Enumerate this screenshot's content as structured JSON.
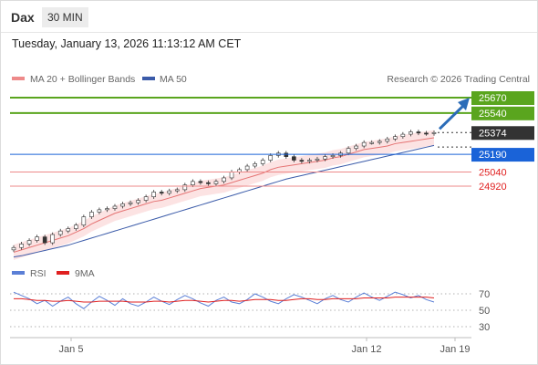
{
  "header": {
    "symbol": "Dax",
    "timeframe": "30 MIN"
  },
  "datetime": "Tuesday, January 13, 2026 11:13:12 AM CET",
  "legend": {
    "ma20": "MA 20 + Bollinger Bands",
    "ma50": "MA 50",
    "credit": "Research © 2026 Trading Central"
  },
  "colors": {
    "resistance": "#5aa51e",
    "support": "#ee8a8a",
    "current": "#333333",
    "pivot": "#1a63d8",
    "ma20": "#e57373",
    "ma50": "#3b5ba9",
    "band": "#fbd9d9",
    "rsi": "#5b7fd6",
    "rsi_ma": "#e02020"
  },
  "chart_data": [
    {
      "type": "candlestick",
      "title": "Dax",
      "timeframe": "30 MIN",
      "x_ticks": [
        "Jan 5",
        "Jan 12",
        "Jan 19"
      ],
      "ylim": [
        24300,
        25750
      ],
      "close_series": [
        24400,
        24430,
        24460,
        24490,
        24440,
        24510,
        24540,
        24560,
        24590,
        24660,
        24700,
        24720,
        24730,
        24750,
        24770,
        24780,
        24800,
        24830,
        24870,
        24860,
        24880,
        24890,
        24930,
        24960,
        24950,
        24940,
        24960,
        24990,
        25040,
        25060,
        25090,
        25110,
        25140,
        25180,
        25200,
        25170,
        25140,
        25130,
        25140,
        25150,
        25170,
        25180,
        25200,
        25240,
        25260,
        25290,
        25290,
        25300,
        25320,
        25340,
        25360,
        25380,
        25370,
        25365,
        25374
      ],
      "series": [
        {
          "name": "MA 20 + Bollinger Bands",
          "values": [
            24360,
            24380,
            24400,
            24420,
            24440,
            24460,
            24480,
            24500,
            24530,
            24560,
            24600,
            24630,
            24660,
            24690,
            24710,
            24730,
            24750,
            24770,
            24790,
            24800,
            24820,
            24840,
            24860,
            24880,
            24900,
            24910,
            24920,
            24930,
            24950,
            24970,
            24990,
            25010,
            25030,
            25060,
            25080,
            25090,
            25100,
            25110,
            25120,
            25130,
            25140,
            25160,
            25170,
            25190,
            25210,
            25230,
            25240,
            25250,
            25260,
            25280,
            25290,
            25300,
            25310,
            25320,
            25330
          ]
        },
        {
          "name": "MA 50",
          "values": [
            24320,
            24330,
            24345,
            24360,
            24375,
            24390,
            24405,
            24420,
            24440,
            24460,
            24480,
            24500,
            24520,
            24540,
            24560,
            24580,
            24600,
            24620,
            24640,
            24660,
            24680,
            24700,
            24720,
            24740,
            24760,
            24780,
            24800,
            24820,
            24840,
            24860,
            24880,
            24900,
            24920,
            24940,
            24960,
            24980,
            24995,
            25010,
            25025,
            25040,
            25055,
            25070,
            25085,
            25100,
            25115,
            25130,
            25145,
            25160,
            25175,
            25190,
            25205,
            25220,
            25235,
            25250,
            25265
          ]
        }
      ],
      "levels": [
        {
          "value": 25670,
          "label": "25670",
          "kind": "resistance"
        },
        {
          "value": 25540,
          "label": "25540",
          "kind": "resistance"
        },
        {
          "value": 25374,
          "label": "25374",
          "kind": "current"
        },
        {
          "value": 25190,
          "label": "25190",
          "kind": "pivot"
        },
        {
          "value": 25040,
          "label": "25040",
          "kind": "support"
        },
        {
          "value": 24920,
          "label": "24920",
          "kind": "support"
        }
      ],
      "annotation": {
        "direction": "up",
        "target": 25670
      }
    },
    {
      "type": "line",
      "series": [
        {
          "name": "RSI",
          "values": [
            72,
            68,
            64,
            58,
            62,
            55,
            61,
            66,
            58,
            52,
            60,
            67,
            62,
            56,
            64,
            58,
            55,
            60,
            66,
            61,
            57,
            63,
            68,
            64,
            59,
            55,
            62,
            66,
            60,
            58,
            63,
            70,
            66,
            61,
            58,
            64,
            69,
            66,
            62,
            58,
            64,
            68,
            63,
            60,
            66,
            71,
            66,
            62,
            67,
            72,
            69,
            65,
            68,
            63,
            60
          ]
        },
        {
          "name": "9MA",
          "values": [
            64,
            64,
            63,
            62,
            62,
            61,
            61,
            62,
            61,
            60,
            60,
            61,
            61,
            61,
            61,
            60,
            60,
            60,
            61,
            61,
            60,
            61,
            62,
            62,
            61,
            60,
            61,
            62,
            62,
            61,
            62,
            63,
            63,
            63,
            62,
            62,
            63,
            64,
            64,
            63,
            63,
            64,
            64,
            64,
            64,
            65,
            65,
            65,
            65,
            66,
            66,
            66,
            66,
            66,
            65
          ]
        }
      ],
      "y_ticks": [
        "70",
        "50",
        "30"
      ],
      "ylim": [
        20,
        80
      ]
    }
  ]
}
